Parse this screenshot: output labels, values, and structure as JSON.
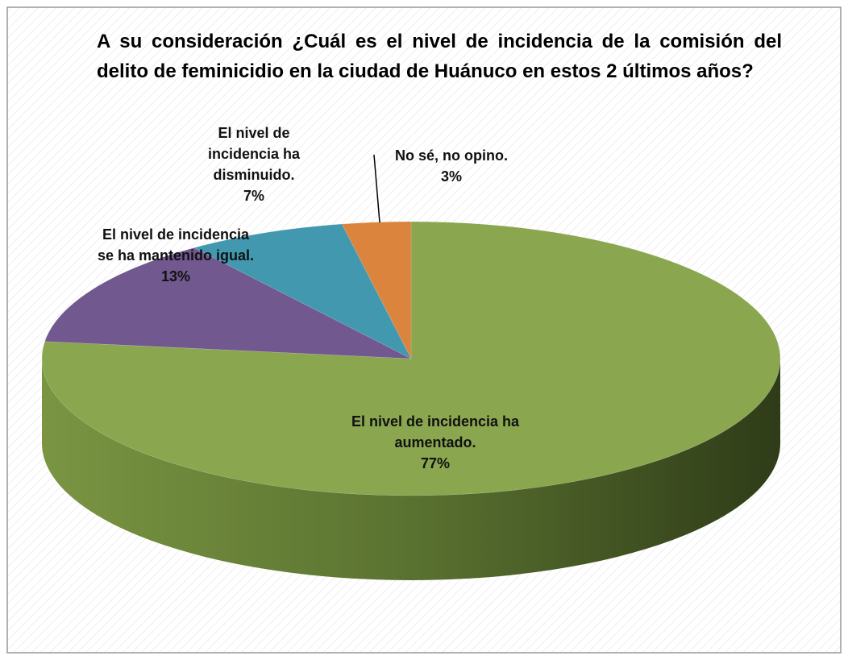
{
  "chart_data": {
    "type": "pie",
    "title": "A su consideración ¿Cuál es el nivel de incidencia de la comisión del delito de feminicidio en la ciudad de Huánuco en estos 2 últimos años?",
    "categories": [
      "El nivel de incidencia ha aumentado.",
      "El nivel de incidencia se ha mantenido igual.",
      "El nivel de incidencia ha disminuido.",
      "No sé, no opino."
    ],
    "values": [
      77,
      13,
      7,
      3
    ],
    "value_labels": [
      "77%",
      "13%",
      "7%",
      "3%"
    ],
    "colors": [
      "#8aa64f",
      "#71588f",
      "#4198af",
      "#db843d"
    ]
  }
}
